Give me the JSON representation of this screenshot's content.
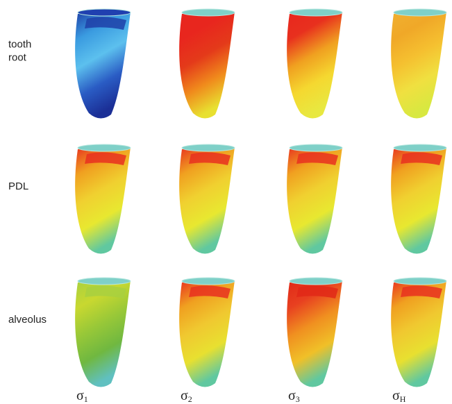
{
  "rows": [
    {
      "label_lines": [
        "tooth",
        "root"
      ]
    },
    {
      "label_lines": [
        "PDL"
      ]
    },
    {
      "label_lines": [
        "alveolus"
      ]
    }
  ],
  "columns": [
    {
      "symbol": "σ",
      "subscript": "1"
    },
    {
      "symbol": "σ",
      "subscript": "2"
    },
    {
      "symbol": "σ",
      "subscript": "3"
    },
    {
      "symbol": "σ",
      "subscript": "H"
    }
  ]
}
